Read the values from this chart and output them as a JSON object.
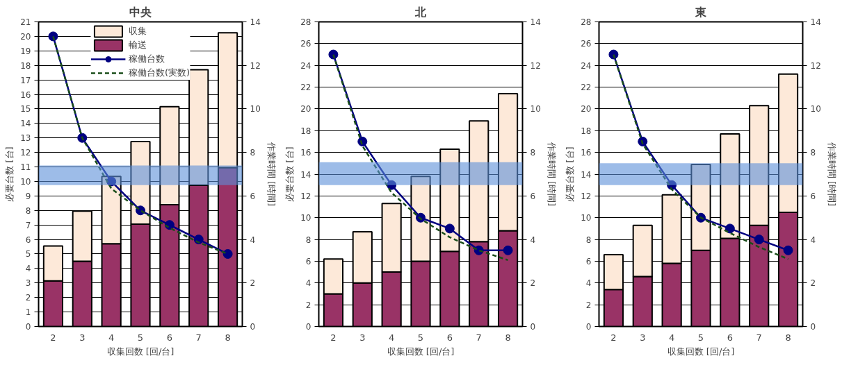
{
  "chart_data": [
    {
      "type": "bar",
      "title": "中央",
      "xlabel": "収集回数 [回/台]",
      "ylabel": "必要台数 [台]",
      "y2label": "作業時間 [時間]",
      "categories": [
        "2",
        "3",
        "4",
        "5",
        "6",
        "7",
        "8"
      ],
      "stacked": true,
      "legend": "top",
      "grid": "y",
      "ylim": [
        0,
        21
      ],
      "yticks": [
        0,
        1,
        2,
        3,
        4,
        5,
        6,
        7,
        8,
        9,
        10,
        11,
        12,
        13,
        14,
        15,
        16,
        17,
        18,
        19,
        20,
        21
      ],
      "y2lim": [
        0,
        14
      ],
      "y2ticks": [
        0,
        2,
        4,
        6,
        8,
        10,
        12,
        14
      ],
      "series": [
        {
          "name": "輸送",
          "axis": "y2",
          "color": "#993366",
          "values": [
            2.1,
            3.0,
            3.8,
            4.7,
            5.6,
            6.5,
            7.3
          ]
        },
        {
          "name": "収集",
          "axis": "y2",
          "color": "#fde9d9",
          "values": [
            1.6,
            2.3,
            3.1,
            3.8,
            4.5,
            5.3,
            6.2
          ]
        },
        {
          "name": "稼働台数",
          "type": "line",
          "axis": "y",
          "color": "#000080",
          "marker": "circle",
          "line_style": "solid",
          "values": [
            20,
            13,
            10,
            8,
            7,
            6,
            5
          ]
        },
        {
          "name": "稼働台数(実数)",
          "type": "line",
          "axis": "y",
          "color": "#1a4d1a",
          "marker": "none",
          "line_style": "dashed",
          "values": [
            20,
            13,
            9.5,
            8.0,
            6.8,
            5.8,
            5.0
          ]
        }
      ],
      "bands": [
        {
          "axis": "y2",
          "from": 6.5,
          "to": 7.4,
          "color": "#5b8fd9"
        }
      ]
    },
    {
      "type": "bar",
      "title": "北",
      "xlabel": "収集回数 [回/台]",
      "ylabel": "必要台数 [台]",
      "y2label": "作業時間 [時間]",
      "categories": [
        "2",
        "3",
        "4",
        "5",
        "6",
        "7",
        "8"
      ],
      "stacked": true,
      "grid": "y",
      "ylim": [
        0,
        28
      ],
      "yticks": [
        0,
        2,
        4,
        6,
        8,
        10,
        12,
        14,
        16,
        18,
        20,
        22,
        24,
        26,
        28
      ],
      "y2lim": [
        0,
        14
      ],
      "y2ticks": [
        0,
        2,
        4,
        6,
        8,
        10,
        12,
        14
      ],
      "series": [
        {
          "axis": "y2",
          "color": "#993366",
          "values": [
            1.5,
            2.0,
            2.5,
            3.0,
            3.45,
            3.9,
            4.4
          ]
        },
        {
          "axis": "y2",
          "color": "#fde9d9",
          "values": [
            1.6,
            2.35,
            3.15,
            3.9,
            4.7,
            5.55,
            6.3
          ]
        },
        {
          "type": "line",
          "axis": "y",
          "color": "#000080",
          "marker": "circle",
          "line_style": "solid",
          "values": [
            25,
            17,
            13,
            10,
            9,
            7,
            7
          ]
        },
        {
          "type": "line",
          "axis": "y",
          "color": "#1a4d1a",
          "marker": "none",
          "line_style": "dashed",
          "values": [
            25,
            16.6,
            12.3,
            9.9,
            8.2,
            7.0,
            6.1
          ]
        }
      ],
      "bands": [
        {
          "axis": "y2",
          "from": 6.5,
          "to": 7.55,
          "color": "#5b8fd9"
        }
      ]
    },
    {
      "type": "bar",
      "title": "東",
      "xlabel": "収集回数 [回/台]",
      "ylabel": "必要台数 [台]",
      "y2label": "作業時間 [時間]",
      "categories": [
        "2",
        "3",
        "4",
        "5",
        "6",
        "7",
        "8"
      ],
      "stacked": true,
      "grid": "y",
      "ylim": [
        0,
        28
      ],
      "yticks": [
        0,
        2,
        4,
        6,
        8,
        10,
        12,
        14,
        16,
        18,
        20,
        22,
        24,
        26,
        28
      ],
      "y2lim": [
        0,
        14
      ],
      "y2ticks": [
        0,
        2,
        4,
        6,
        8,
        10,
        12,
        14
      ],
      "series": [
        {
          "axis": "y2",
          "color": "#993366",
          "values": [
            1.7,
            2.3,
            2.9,
            3.5,
            4.05,
            4.65,
            5.25
          ]
        },
        {
          "axis": "y2",
          "color": "#fde9d9",
          "values": [
            1.6,
            2.35,
            3.15,
            3.95,
            4.8,
            5.5,
            6.35
          ]
        },
        {
          "type": "line",
          "axis": "y",
          "color": "#000080",
          "marker": "circle",
          "line_style": "solid",
          "values": [
            25,
            17,
            13,
            10,
            9,
            8,
            7
          ]
        },
        {
          "type": "line",
          "axis": "y",
          "color": "#1a4d1a",
          "marker": "none",
          "line_style": "dashed",
          "values": [
            25,
            16.8,
            12.6,
            10.0,
            8.6,
            7.3,
            6.2
          ]
        }
      ],
      "bands": [
        {
          "axis": "y2",
          "from": 6.5,
          "to": 7.5,
          "color": "#5b8fd9"
        }
      ]
    }
  ]
}
